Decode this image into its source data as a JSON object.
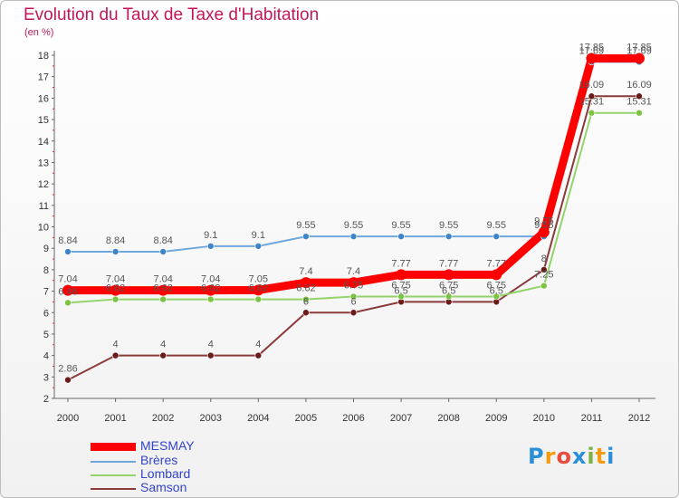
{
  "title": "Evolution du Taux de Taxe d'Habitation",
  "unit_label": "(en %)",
  "logo": {
    "letters": [
      "P",
      "r",
      "o",
      "x",
      "i",
      "t",
      "i"
    ],
    "colors": [
      "#2b8fd8",
      "#f39c12",
      "#e74c3c",
      "#2b8fd8",
      "#7cb342",
      "#f39c12",
      "#2b8fd8"
    ]
  },
  "chart_data": {
    "type": "line",
    "title": "Evolution du Taux de Taxe d'Habitation",
    "ylabel": "(en %)",
    "x": [
      "2000",
      "2001",
      "2002",
      "2003",
      "2004",
      "2005",
      "2006",
      "2007",
      "2008",
      "2009",
      "2010",
      "2011",
      "2012"
    ],
    "ylim": [
      2,
      18
    ],
    "yticks": [
      "2",
      "3",
      "4",
      "5",
      "6",
      "7",
      "8",
      "9",
      "10",
      "11",
      "12",
      "13",
      "14",
      "15",
      "16",
      "17",
      "18"
    ],
    "grid": false,
    "legend_position": "bottom-left",
    "series": [
      {
        "name": "MESMAY",
        "color": "#ff0000",
        "marker": "#ff0000",
        "values": [
          7.04,
          7.04,
          7.04,
          7.04,
          7.05,
          7.4,
          7.4,
          7.77,
          7.77,
          7.77,
          9.75,
          17.85,
          17.85
        ],
        "labels": [
          "7.04",
          "7.04",
          "7.04",
          "7.04",
          "7.05",
          "7.4",
          "7.4",
          "7.77",
          "7.77",
          "7.77",
          "9.75",
          "17.85",
          "17.85"
        ]
      },
      {
        "name": "Brères",
        "color": "#6fa8dc",
        "marker": "#3d85c6",
        "values": [
          8.84,
          8.84,
          8.84,
          9.1,
          9.1,
          9.55,
          9.55,
          9.55,
          9.55,
          9.55,
          9.55,
          17.69,
          17.69
        ],
        "labels": [
          "8.84",
          "8.84",
          "8.84",
          "9.1",
          "9.1",
          "9.55",
          "9.55",
          "9.55",
          "9.55",
          "9.55",
          "9.55",
          "17.69",
          "17.69"
        ]
      },
      {
        "name": "Lombard",
        "color": "#93d36b",
        "marker": "#7cc243",
        "values": [
          6.46,
          6.62,
          6.62,
          6.62,
          6.62,
          6.62,
          6.75,
          6.75,
          6.75,
          6.75,
          7.25,
          15.31,
          15.31
        ],
        "labels": [
          "6.46",
          "6.62",
          "6.62",
          "6.62",
          "6.62",
          "6.62",
          "6.75",
          "6.75",
          "6.75",
          "6.75",
          "7.25",
          "15.31",
          "15.31"
        ]
      },
      {
        "name": "Samson",
        "color": "#8b3a3a",
        "marker": "#6b1a1a",
        "values": [
          2.86,
          4,
          4,
          4,
          4,
          6,
          6,
          6.5,
          6.5,
          6.5,
          8,
          16.09,
          16.09
        ],
        "labels": [
          "2.86",
          "4",
          "4",
          "4",
          "4",
          "6",
          "6",
          "6.5",
          "6.5",
          "6.5",
          "8",
          "16.09",
          "16.09"
        ]
      }
    ]
  }
}
